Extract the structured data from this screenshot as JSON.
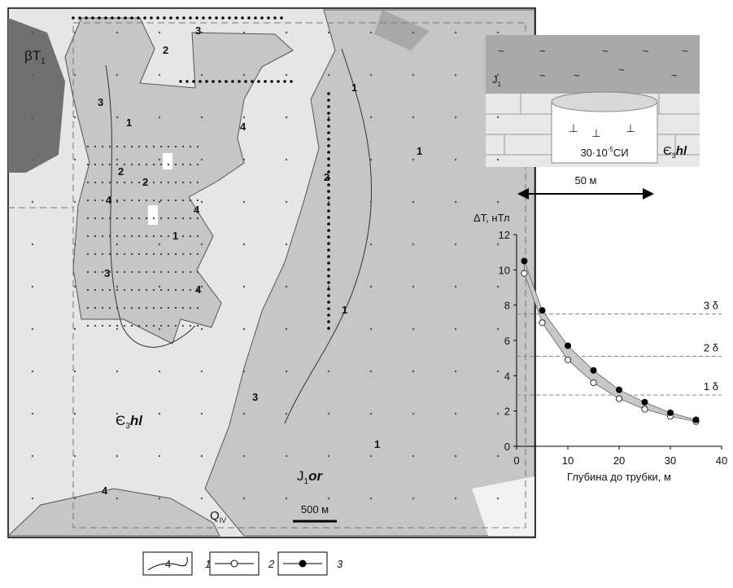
{
  "map": {
    "labels": {
      "basalt": {
        "main": "βT",
        "sub": "1"
      },
      "cambrian": {
        "main": "Є",
        "sub": "3",
        "suffix": "hl"
      },
      "jurassic": {
        "main": "J",
        "sub": "1",
        "suffix": "or"
      },
      "quaternary": {
        "main": "Q",
        "sub": "IV"
      }
    },
    "scale_bar": "500 м",
    "contour_labels": [
      "3",
      "2",
      "1",
      "3",
      "2",
      "4",
      "1",
      "2",
      "4",
      "3",
      "4",
      "4",
      "2",
      "3",
      "1",
      "1",
      "1",
      "4",
      "1"
    ]
  },
  "diagram": {
    "cover": {
      "main": "J",
      "sub": "1"
    },
    "tilde": "~",
    "pipe_symbol": "⊥",
    "susceptibility": {
      "pre": "30·10",
      "sup": "-5",
      "post": "СИ"
    },
    "host": {
      "main": "Є",
      "sub": "3",
      "suffix": "hl"
    },
    "width_label": "50 м"
  },
  "chart_data": {
    "type": "line",
    "y_label": "ΔT, нТл",
    "x_label": "Глубина до трубки, м",
    "x": [
      1.5,
      5,
      10,
      15,
      20,
      25,
      30,
      35
    ],
    "series": [
      {
        "name": "2",
        "color": "#ffffff",
        "values": [
          9.8,
          7.0,
          4.9,
          3.6,
          2.7,
          2.1,
          1.7,
          1.4
        ]
      },
      {
        "name": "3",
        "color": "#000000",
        "values": [
          10.5,
          7.7,
          5.7,
          4.3,
          3.2,
          2.5,
          1.9,
          1.5
        ]
      }
    ],
    "band_color": "#c8c8c8",
    "thresholds": [
      {
        "value": 7.5,
        "label": "3 δ"
      },
      {
        "value": 5.1,
        "label": "2 δ"
      },
      {
        "value": 2.9,
        "label": "1 δ"
      }
    ],
    "xlim": [
      0,
      40
    ],
    "xticks": [
      0,
      10,
      20,
      30,
      40
    ],
    "ylim": [
      0,
      12
    ],
    "yticks": [
      0,
      2,
      4,
      6,
      8,
      10,
      12
    ]
  },
  "legend": {
    "items": [
      {
        "sample": "4",
        "label": "1"
      },
      {
        "label": "2"
      },
      {
        "label": "3"
      }
    ]
  }
}
